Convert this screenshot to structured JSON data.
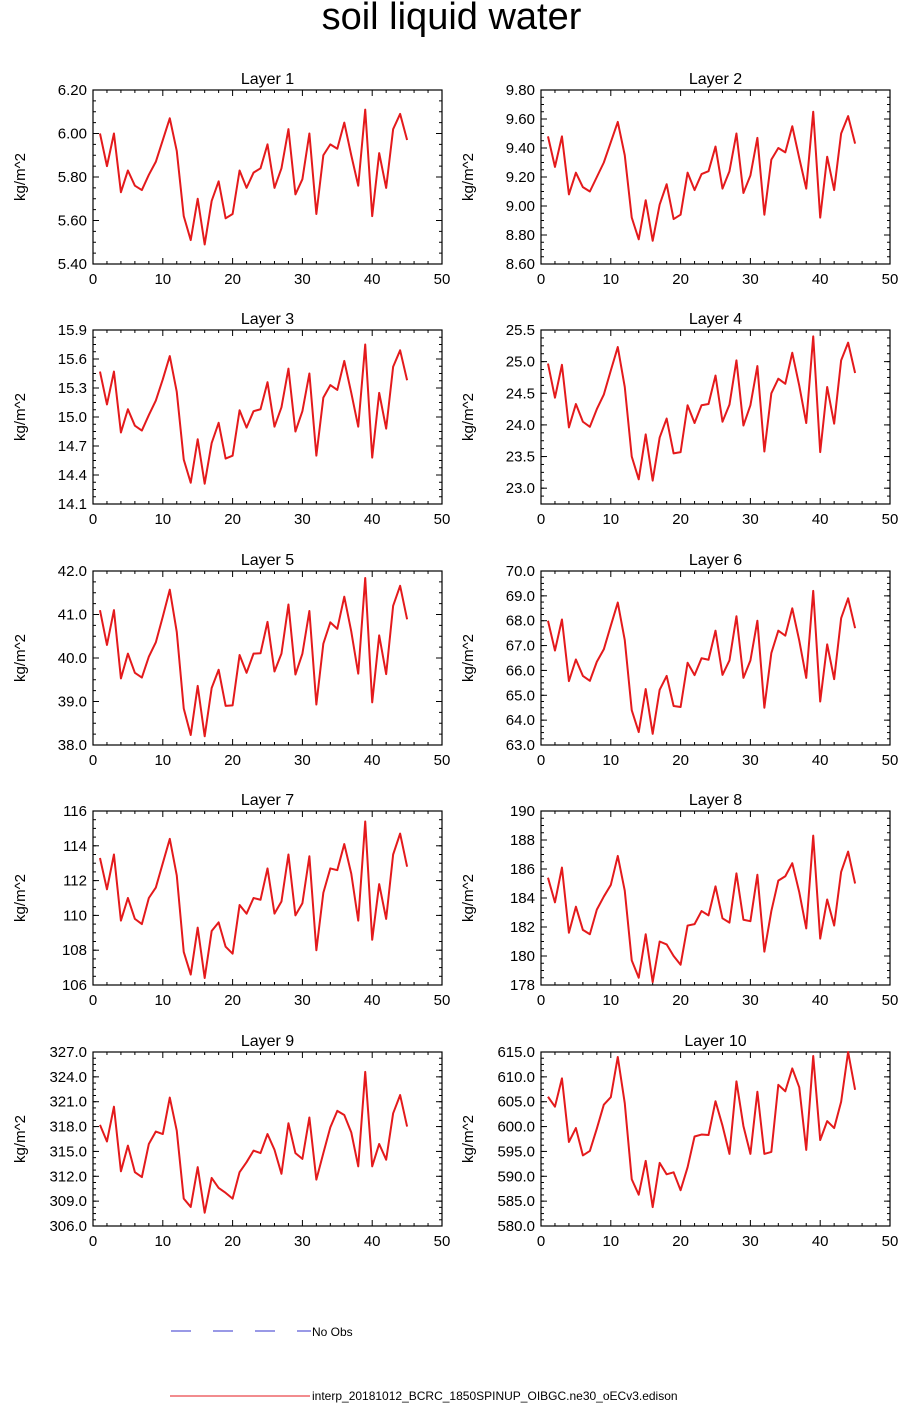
{
  "title": "soil liquid water",
  "legend": {
    "no_obs_label": "No Obs",
    "no_obs_color": "#3333cc",
    "model_label": "interp_20181012_BCRC_1850SPINUP_OIBGC.ne30_oECv3.edison",
    "model_color": "#e41a1c"
  },
  "chart_data": [
    {
      "type": "line",
      "title": "Layer 1",
      "ylabel": "kg/m^2",
      "xlim": [
        0,
        50
      ],
      "xticks": [
        "0",
        "10",
        "20",
        "30",
        "40",
        "50"
      ],
      "ylim": [
        5.4,
        6.2
      ],
      "yticks": [
        "5.40",
        "5.60",
        "5.80",
        "6.00",
        "6.20"
      ],
      "x": [
        1,
        2,
        3,
        4,
        5,
        6,
        7,
        8,
        9,
        10,
        11,
        12,
        13,
        14,
        15,
        16,
        17,
        18,
        19,
        20,
        21,
        22,
        23,
        24,
        25,
        26,
        27,
        28,
        29,
        30,
        31,
        32,
        33,
        34,
        35,
        36,
        37,
        38,
        39,
        40,
        41,
        42,
        43,
        44,
        45
      ],
      "series": [
        {
          "values": [
            6.0,
            5.85,
            6.0,
            5.73,
            5.83,
            5.76,
            5.74,
            5.81,
            5.87,
            5.97,
            6.07,
            5.92,
            5.62,
            5.51,
            5.7,
            5.49,
            5.69,
            5.78,
            5.61,
            5.63,
            5.83,
            5.75,
            5.82,
            5.84,
            5.95,
            5.75,
            5.84,
            6.02,
            5.72,
            5.79,
            6.0,
            5.63,
            5.9,
            5.95,
            5.93,
            6.05,
            5.9,
            5.76,
            6.11,
            5.62,
            5.91,
            5.75,
            6.02,
            6.09,
            5.97
          ]
        }
      ]
    },
    {
      "type": "line",
      "title": "Layer 2",
      "ylabel": "kg/m^2",
      "xlim": [
        0,
        50
      ],
      "xticks": [
        "0",
        "10",
        "20",
        "30",
        "40",
        "50"
      ],
      "ylim": [
        8.6,
        9.8
      ],
      "yticks": [
        "8.60",
        "8.80",
        "9.00",
        "9.20",
        "9.40",
        "9.60",
        "9.80"
      ],
      "x": [
        1,
        2,
        3,
        4,
        5,
        6,
        7,
        8,
        9,
        10,
        11,
        12,
        13,
        14,
        15,
        16,
        17,
        18,
        19,
        20,
        21,
        22,
        23,
        24,
        25,
        26,
        27,
        28,
        29,
        30,
        31,
        32,
        33,
        34,
        35,
        36,
        37,
        38,
        39,
        40,
        41,
        42,
        43,
        44,
        45
      ],
      "series": [
        {
          "values": [
            9.48,
            9.27,
            9.48,
            9.08,
            9.23,
            9.13,
            9.1,
            9.2,
            9.3,
            9.44,
            9.58,
            9.35,
            8.92,
            8.77,
            9.04,
            8.76,
            9.01,
            9.15,
            8.91,
            8.94,
            9.23,
            9.11,
            9.22,
            9.24,
            9.41,
            9.12,
            9.24,
            9.5,
            9.09,
            9.21,
            9.47,
            8.94,
            9.32,
            9.4,
            9.37,
            9.55,
            9.33,
            9.12,
            9.65,
            8.92,
            9.34,
            9.11,
            9.5,
            9.62,
            9.43
          ]
        }
      ]
    },
    {
      "type": "line",
      "title": "Layer 3",
      "ylabel": "kg/m^2",
      "xlim": [
        0,
        50
      ],
      "xticks": [
        "0",
        "10",
        "20",
        "30",
        "40",
        "50"
      ],
      "ylim": [
        14.1,
        15.9
      ],
      "yticks": [
        "14.1",
        "14.4",
        "14.7",
        "15.0",
        "15.3",
        "15.6",
        "15.9"
      ],
      "x": [
        1,
        2,
        3,
        4,
        5,
        6,
        7,
        8,
        9,
        10,
        11,
        12,
        13,
        14,
        15,
        16,
        17,
        18,
        19,
        20,
        21,
        22,
        23,
        24,
        25,
        26,
        27,
        28,
        29,
        30,
        31,
        32,
        33,
        34,
        35,
        36,
        37,
        38,
        39,
        40,
        41,
        42,
        43,
        44,
        45
      ],
      "series": [
        {
          "values": [
            15.47,
            15.13,
            15.47,
            14.84,
            15.08,
            14.91,
            14.86,
            15.02,
            15.17,
            15.39,
            15.63,
            15.26,
            14.56,
            14.32,
            14.77,
            14.31,
            14.73,
            14.94,
            14.57,
            14.6,
            15.07,
            14.89,
            15.06,
            15.08,
            15.36,
            14.9,
            15.1,
            15.5,
            14.85,
            15.06,
            15.45,
            14.6,
            15.2,
            15.33,
            15.28,
            15.58,
            15.25,
            14.9,
            15.75,
            14.58,
            15.25,
            14.88,
            15.52,
            15.69,
            15.38
          ]
        }
      ]
    },
    {
      "type": "line",
      "title": "Layer 4",
      "ylabel": "kg/m^2",
      "xlim": [
        0,
        50
      ],
      "xticks": [
        "0",
        "10",
        "20",
        "30",
        "40",
        "50"
      ],
      "ylim": [
        22.75,
        25.5
      ],
      "yticks": [
        "23.0",
        "23.5",
        "24.0",
        "24.5",
        "25.0",
        "25.5"
      ],
      "x": [
        1,
        2,
        3,
        4,
        5,
        6,
        7,
        8,
        9,
        10,
        11,
        12,
        13,
        14,
        15,
        16,
        17,
        18,
        19,
        20,
        21,
        22,
        23,
        24,
        25,
        26,
        27,
        28,
        29,
        30,
        31,
        32,
        33,
        34,
        35,
        36,
        37,
        38,
        39,
        40,
        41,
        42,
        43,
        44,
        45
      ],
      "series": [
        {
          "values": [
            24.97,
            24.43,
            24.95,
            23.96,
            24.33,
            24.05,
            23.97,
            24.25,
            24.48,
            24.86,
            25.23,
            24.6,
            23.5,
            23.14,
            23.85,
            23.12,
            23.8,
            24.1,
            23.55,
            23.57,
            24.31,
            24.03,
            24.31,
            24.33,
            24.78,
            24.05,
            24.32,
            25.02,
            23.99,
            24.31,
            24.93,
            23.58,
            24.5,
            24.73,
            24.65,
            25.14,
            24.62,
            24.03,
            25.4,
            23.57,
            24.6,
            24.02,
            25.02,
            25.3,
            24.82
          ]
        }
      ]
    },
    {
      "type": "line",
      "title": "Layer 5",
      "ylabel": "kg/m^2",
      "xlim": [
        0,
        50
      ],
      "xticks": [
        "0",
        "10",
        "20",
        "30",
        "40",
        "50"
      ],
      "ylim": [
        38.0,
        42.0
      ],
      "yticks": [
        "38.0",
        "39.0",
        "40.0",
        "41.0",
        "42.0"
      ],
      "x": [
        1,
        2,
        3,
        4,
        5,
        6,
        7,
        8,
        9,
        10,
        11,
        12,
        13,
        14,
        15,
        16,
        17,
        18,
        19,
        20,
        21,
        22,
        23,
        24,
        25,
        26,
        27,
        28,
        29,
        30,
        31,
        32,
        33,
        34,
        35,
        36,
        37,
        38,
        39,
        40,
        41,
        42,
        43,
        44,
        45
      ],
      "series": [
        {
          "values": [
            41.1,
            40.3,
            41.1,
            39.53,
            40.1,
            39.66,
            39.55,
            40.03,
            40.36,
            40.95,
            41.57,
            40.6,
            38.84,
            38.23,
            39.36,
            38.2,
            39.31,
            39.73,
            38.9,
            38.91,
            40.07,
            39.66,
            40.1,
            40.11,
            40.83,
            39.69,
            40.1,
            41.23,
            39.62,
            40.1,
            41.08,
            38.93,
            40.33,
            40.82,
            40.67,
            41.41,
            40.61,
            39.64,
            41.84,
            38.98,
            40.52,
            39.63,
            41.2,
            41.66,
            40.89
          ]
        }
      ]
    },
    {
      "type": "line",
      "title": "Layer 6",
      "ylabel": "kg/m^2",
      "xlim": [
        0,
        50
      ],
      "xticks": [
        "0",
        "10",
        "20",
        "30",
        "40",
        "50"
      ],
      "ylim": [
        63.0,
        70.0
      ],
      "yticks": [
        "63.0",
        "64.0",
        "65.0",
        "66.0",
        "67.0",
        "68.0",
        "69.0",
        "70.0"
      ],
      "x": [
        1,
        2,
        3,
        4,
        5,
        6,
        7,
        8,
        9,
        10,
        11,
        12,
        13,
        14,
        15,
        16,
        17,
        18,
        19,
        20,
        21,
        22,
        23,
        24,
        25,
        26,
        27,
        28,
        29,
        30,
        31,
        32,
        33,
        34,
        35,
        36,
        37,
        38,
        39,
        40,
        41,
        42,
        43,
        44,
        45
      ],
      "series": [
        {
          "values": [
            68.0,
            66.8,
            68.05,
            65.57,
            66.44,
            65.78,
            65.58,
            66.35,
            66.85,
            67.8,
            68.73,
            67.22,
            64.4,
            63.52,
            65.25,
            63.45,
            65.22,
            65.78,
            64.57,
            64.53,
            66.31,
            65.81,
            66.49,
            66.43,
            67.6,
            65.82,
            66.4,
            68.18,
            65.7,
            66.4,
            68.0,
            64.5,
            66.7,
            67.6,
            67.4,
            68.5,
            67.2,
            65.7,
            69.2,
            64.75,
            67.05,
            65.65,
            68.1,
            68.9,
            67.7
          ]
        }
      ]
    },
    {
      "type": "line",
      "title": "Layer 7",
      "ylabel": "kg/m^2",
      "xlim": [
        0,
        50
      ],
      "xticks": [
        "0",
        "10",
        "20",
        "30",
        "40",
        "50"
      ],
      "ylim": [
        106,
        116
      ],
      "yticks": [
        "106",
        "108",
        "110",
        "112",
        "114",
        "116"
      ],
      "x": [
        1,
        2,
        3,
        4,
        5,
        6,
        7,
        8,
        9,
        10,
        11,
        12,
        13,
        14,
        15,
        16,
        17,
        18,
        19,
        20,
        21,
        22,
        23,
        24,
        25,
        26,
        27,
        28,
        29,
        30,
        31,
        32,
        33,
        34,
        35,
        36,
        37,
        38,
        39,
        40,
        41,
        42,
        43,
        44,
        45
      ],
      "series": [
        {
          "values": [
            113.3,
            111.5,
            113.5,
            109.7,
            111.0,
            109.8,
            109.5,
            111.0,
            111.6,
            113.0,
            114.4,
            112.3,
            107.9,
            106.6,
            109.3,
            106.4,
            109.1,
            109.6,
            108.2,
            107.8,
            110.6,
            110.1,
            111.0,
            110.9,
            112.7,
            110.1,
            110.8,
            113.5,
            110.0,
            110.7,
            113.4,
            108.0,
            111.3,
            112.7,
            112.6,
            114.1,
            112.4,
            109.7,
            115.4,
            108.6,
            111.8,
            109.8,
            113.5,
            114.7,
            112.8
          ]
        }
      ]
    },
    {
      "type": "line",
      "title": "Layer 8",
      "ylabel": "kg/m^2",
      "xlim": [
        0,
        50
      ],
      "xticks": [
        "0",
        "10",
        "20",
        "30",
        "40",
        "50"
      ],
      "ylim": [
        178,
        190
      ],
      "yticks": [
        "178",
        "180",
        "182",
        "184",
        "186",
        "188",
        "190"
      ],
      "x": [
        1,
        2,
        3,
        4,
        5,
        6,
        7,
        8,
        9,
        10,
        11,
        12,
        13,
        14,
        15,
        16,
        17,
        18,
        19,
        20,
        21,
        22,
        23,
        24,
        25,
        26,
        27,
        28,
        29,
        30,
        31,
        32,
        33,
        34,
        35,
        36,
        37,
        38,
        39,
        40,
        41,
        42,
        43,
        44,
        45
      ],
      "series": [
        {
          "values": [
            185.4,
            183.7,
            186.1,
            181.6,
            183.4,
            181.8,
            181.5,
            183.2,
            184.1,
            184.9,
            186.9,
            184.5,
            179.7,
            178.5,
            181.5,
            178.2,
            181.0,
            180.8,
            180.0,
            179.4,
            182.1,
            182.2,
            183.1,
            182.8,
            184.8,
            182.6,
            182.3,
            185.7,
            182.5,
            182.4,
            185.6,
            180.3,
            183.1,
            185.2,
            185.5,
            186.4,
            184.4,
            181.9,
            188.3,
            181.2,
            183.9,
            182.1,
            185.8,
            187.2,
            185.0
          ]
        }
      ]
    },
    {
      "type": "line",
      "title": "Layer 9",
      "ylabel": "kg/m^2",
      "xlim": [
        0,
        50
      ],
      "xticks": [
        "0",
        "10",
        "20",
        "30",
        "40",
        "50"
      ],
      "ylim": [
        306.0,
        327.0
      ],
      "yticks": [
        "306.0",
        "309.0",
        "312.0",
        "315.0",
        "318.0",
        "321.0",
        "324.0",
        "327.0"
      ],
      "x": [
        1,
        2,
        3,
        4,
        5,
        6,
        7,
        8,
        9,
        10,
        11,
        12,
        13,
        14,
        15,
        16,
        17,
        18,
        19,
        20,
        21,
        22,
        23,
        24,
        25,
        26,
        27,
        28,
        29,
        30,
        31,
        32,
        33,
        34,
        35,
        36,
        37,
        38,
        39,
        40,
        41,
        42,
        43,
        44,
        45
      ],
      "series": [
        {
          "values": [
            318.2,
            316.2,
            320.4,
            312.6,
            315.7,
            312.5,
            311.9,
            315.9,
            317.4,
            317.1,
            321.5,
            317.5,
            309.3,
            308.3,
            313.1,
            307.6,
            311.8,
            310.6,
            310.0,
            309.3,
            312.5,
            313.7,
            315.1,
            314.8,
            317.1,
            315.2,
            312.3,
            318.4,
            314.8,
            314.1,
            319.1,
            311.6,
            314.8,
            317.9,
            319.9,
            319.4,
            317.3,
            313.2,
            324.6,
            313.2,
            315.9,
            314.0,
            319.6,
            321.8,
            318.0
          ]
        }
      ]
    },
    {
      "type": "line",
      "title": "Layer 10",
      "ylabel": "kg/m^2",
      "xlim": [
        0,
        50
      ],
      "xticks": [
        "0",
        "10",
        "20",
        "30",
        "40",
        "50"
      ],
      "ylim": [
        580.0,
        615.0
      ],
      "yticks": [
        "580.0",
        "585.0",
        "590.0",
        "595.0",
        "600.0",
        "605.0",
        "610.0",
        "615.0"
      ],
      "x": [
        1,
        2,
        3,
        4,
        5,
        6,
        7,
        8,
        9,
        10,
        11,
        12,
        13,
        14,
        15,
        16,
        17,
        18,
        19,
        20,
        21,
        22,
        23,
        24,
        25,
        26,
        27,
        28,
        29,
        30,
        31,
        32,
        33,
        34,
        35,
        36,
        37,
        38,
        39,
        40,
        41,
        42,
        43,
        44,
        45
      ],
      "series": [
        {
          "values": [
            606.0,
            604.0,
            609.7,
            596.9,
            599.7,
            594.2,
            595.1,
            599.6,
            604.4,
            605.9,
            614.0,
            604.7,
            589.4,
            586.3,
            593.1,
            583.8,
            592.7,
            590.4,
            590.8,
            587.2,
            591.8,
            598.0,
            598.4,
            598.3,
            605.1,
            600.2,
            594.5,
            609.1,
            600.1,
            594.5,
            607.0,
            594.5,
            594.9,
            608.4,
            607.1,
            611.7,
            607.9,
            595.3,
            614.2,
            597.3,
            601.1,
            599.7,
            605.0,
            615.0,
            607.4
          ]
        }
      ]
    }
  ]
}
